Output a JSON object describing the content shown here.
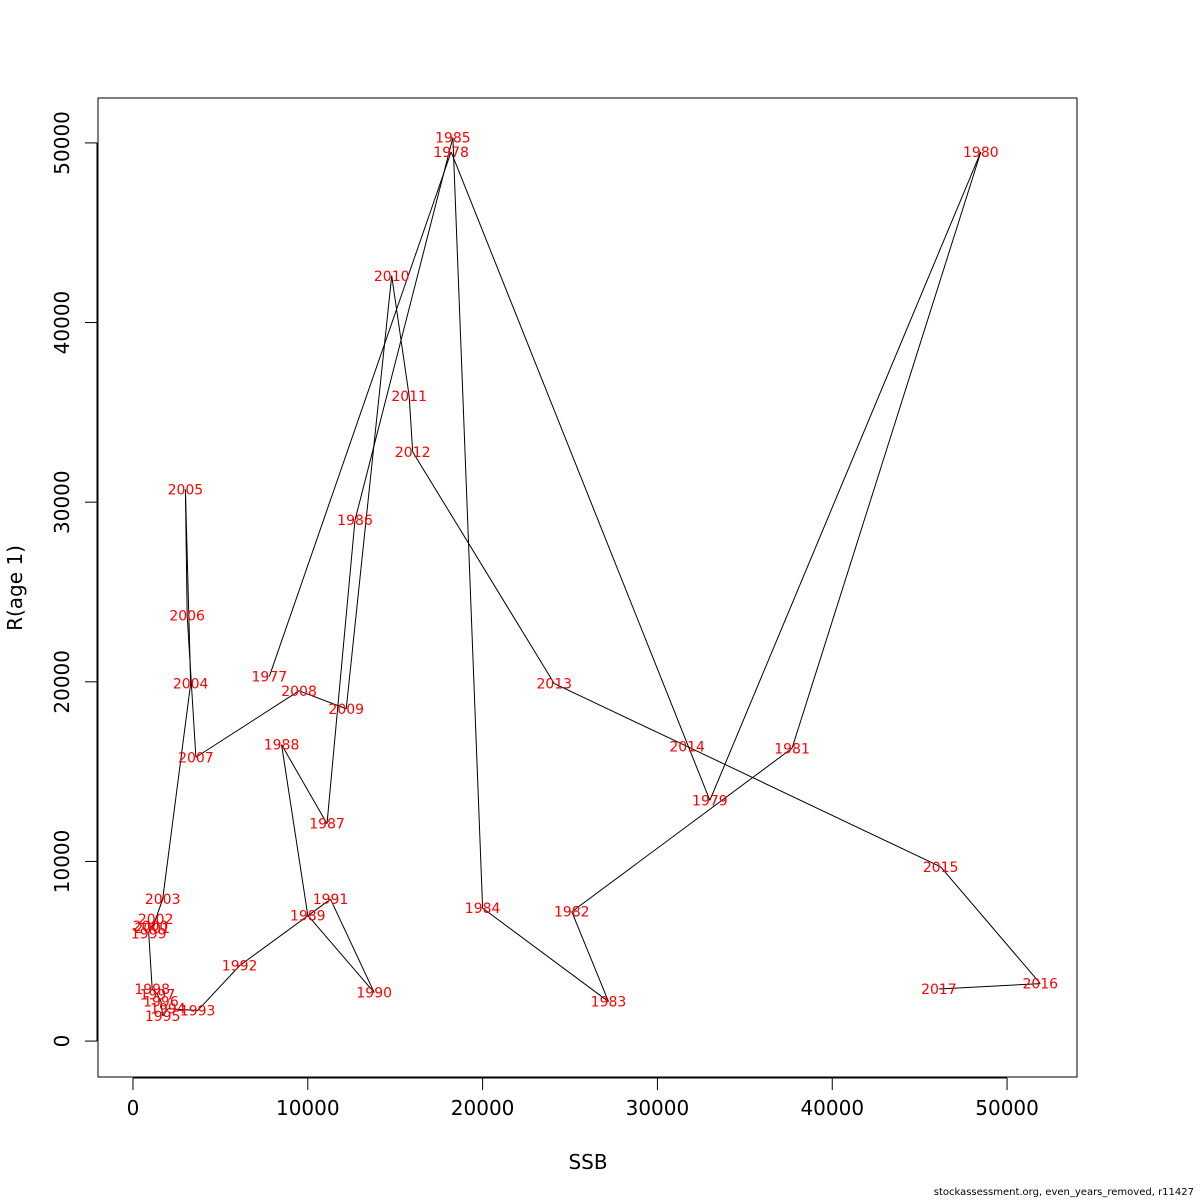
{
  "chart_data": {
    "type": "line",
    "xlabel": "SSB",
    "ylabel": "R(age 1)",
    "xlim": [
      -2000,
      54000
    ],
    "ylim": [
      -2000,
      52500
    ],
    "xticks": [
      0,
      10000,
      20000,
      30000,
      40000,
      50000
    ],
    "yticks": [
      0,
      10000,
      20000,
      30000,
      40000,
      50000
    ],
    "line_color": "#000000",
    "label_color": "#ff0000",
    "points": [
      {
        "year": "1977",
        "x": 7800,
        "y": 20300
      },
      {
        "year": "1978",
        "x": 18200,
        "y": 49500
      },
      {
        "year": "1979",
        "x": 33000,
        "y": 13400
      },
      {
        "year": "1980",
        "x": 48500,
        "y": 49500
      },
      {
        "year": "1981",
        "x": 37700,
        "y": 16300
      },
      {
        "year": "1982",
        "x": 25100,
        "y": 7200
      },
      {
        "year": "1983",
        "x": 27200,
        "y": 2200
      },
      {
        "year": "1984",
        "x": 20000,
        "y": 7400
      },
      {
        "year": "1985",
        "x": 18300,
        "y": 50300
      },
      {
        "year": "1986",
        "x": 12700,
        "y": 29000
      },
      {
        "year": "1987",
        "x": 11100,
        "y": 12100
      },
      {
        "year": "1988",
        "x": 8500,
        "y": 16500
      },
      {
        "year": "1989",
        "x": 10000,
        "y": 7000
      },
      {
        "year": "1990",
        "x": 13800,
        "y": 2700
      },
      {
        "year": "1991",
        "x": 11300,
        "y": 7900
      },
      {
        "year": "1992",
        "x": 6100,
        "y": 4200
      },
      {
        "year": "1993",
        "x": 3700,
        "y": 1700
      },
      {
        "year": "1994",
        "x": 2000,
        "y": 1800
      },
      {
        "year": "1995",
        "x": 1700,
        "y": 1400
      },
      {
        "year": "1996",
        "x": 1600,
        "y": 2200
      },
      {
        "year": "1997",
        "x": 1400,
        "y": 2600
      },
      {
        "year": "1998",
        "x": 1100,
        "y": 2900
      },
      {
        "year": "1999",
        "x": 900,
        "y": 6000
      },
      {
        "year": "2000",
        "x": 1000,
        "y": 6400
      },
      {
        "year": "2001",
        "x": 1100,
        "y": 6300
      },
      {
        "year": "2002",
        "x": 1300,
        "y": 6800
      },
      {
        "year": "2003",
        "x": 1700,
        "y": 7900
      },
      {
        "year": "2004",
        "x": 3300,
        "y": 19900
      },
      {
        "year": "2005",
        "x": 3000,
        "y": 30700
      },
      {
        "year": "2006",
        "x": 3100,
        "y": 23700
      },
      {
        "year": "2007",
        "x": 3600,
        "y": 15800
      },
      {
        "year": "2008",
        "x": 9500,
        "y": 19500
      },
      {
        "year": "2009",
        "x": 12200,
        "y": 18500
      },
      {
        "year": "2010",
        "x": 14800,
        "y": 42600
      },
      {
        "year": "2011",
        "x": 15800,
        "y": 35900
      },
      {
        "year": "2012",
        "x": 16000,
        "y": 32800
      },
      {
        "year": "2013",
        "x": 24100,
        "y": 19900
      },
      {
        "year": "2014",
        "x": 31700,
        "y": 16400
      },
      {
        "year": "2015",
        "x": 46200,
        "y": 9700
      },
      {
        "year": "2016",
        "x": 51900,
        "y": 3200
      },
      {
        "year": "2017",
        "x": 46100,
        "y": 2900
      }
    ]
  },
  "footnote": "stockassessment.org, even_years_removed, r11427"
}
